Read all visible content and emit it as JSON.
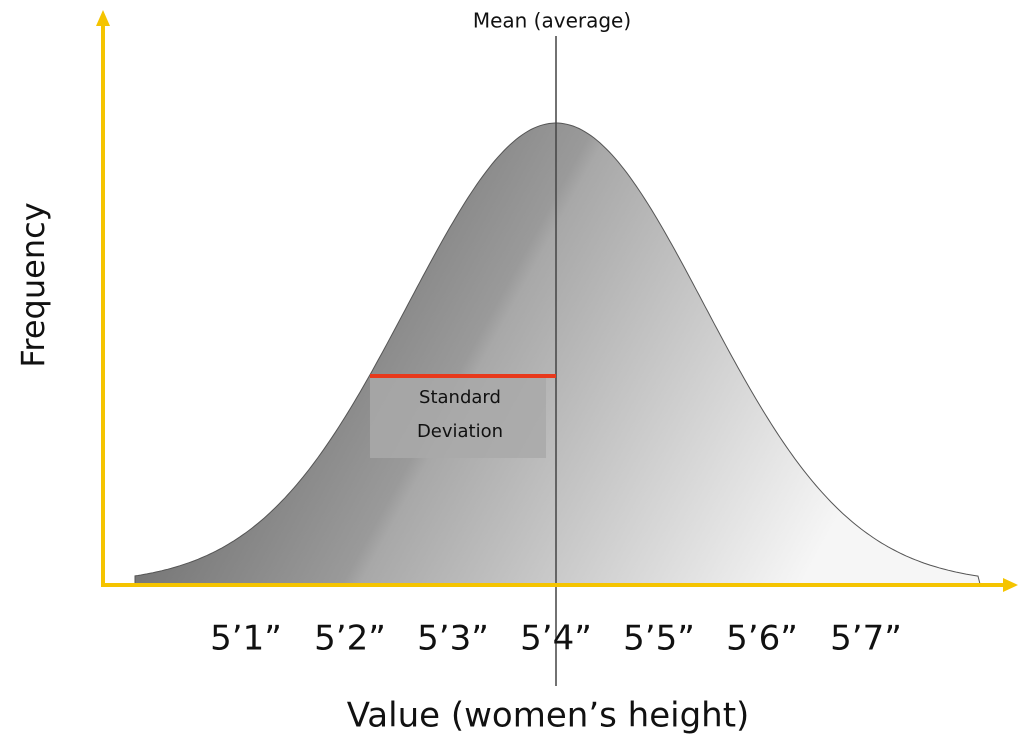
{
  "title": "Mean (average)",
  "y_axis_label": "Frequency",
  "x_axis_label": "Value (women’s height)",
  "x_labels": [
    "5’1”",
    "5’2”",
    "5’3”",
    "5’4”",
    "5’5”",
    "5’6”",
    "5’7”"
  ],
  "annotation": {
    "lines": [
      "Standard",
      "Deviation"
    ]
  }
}
